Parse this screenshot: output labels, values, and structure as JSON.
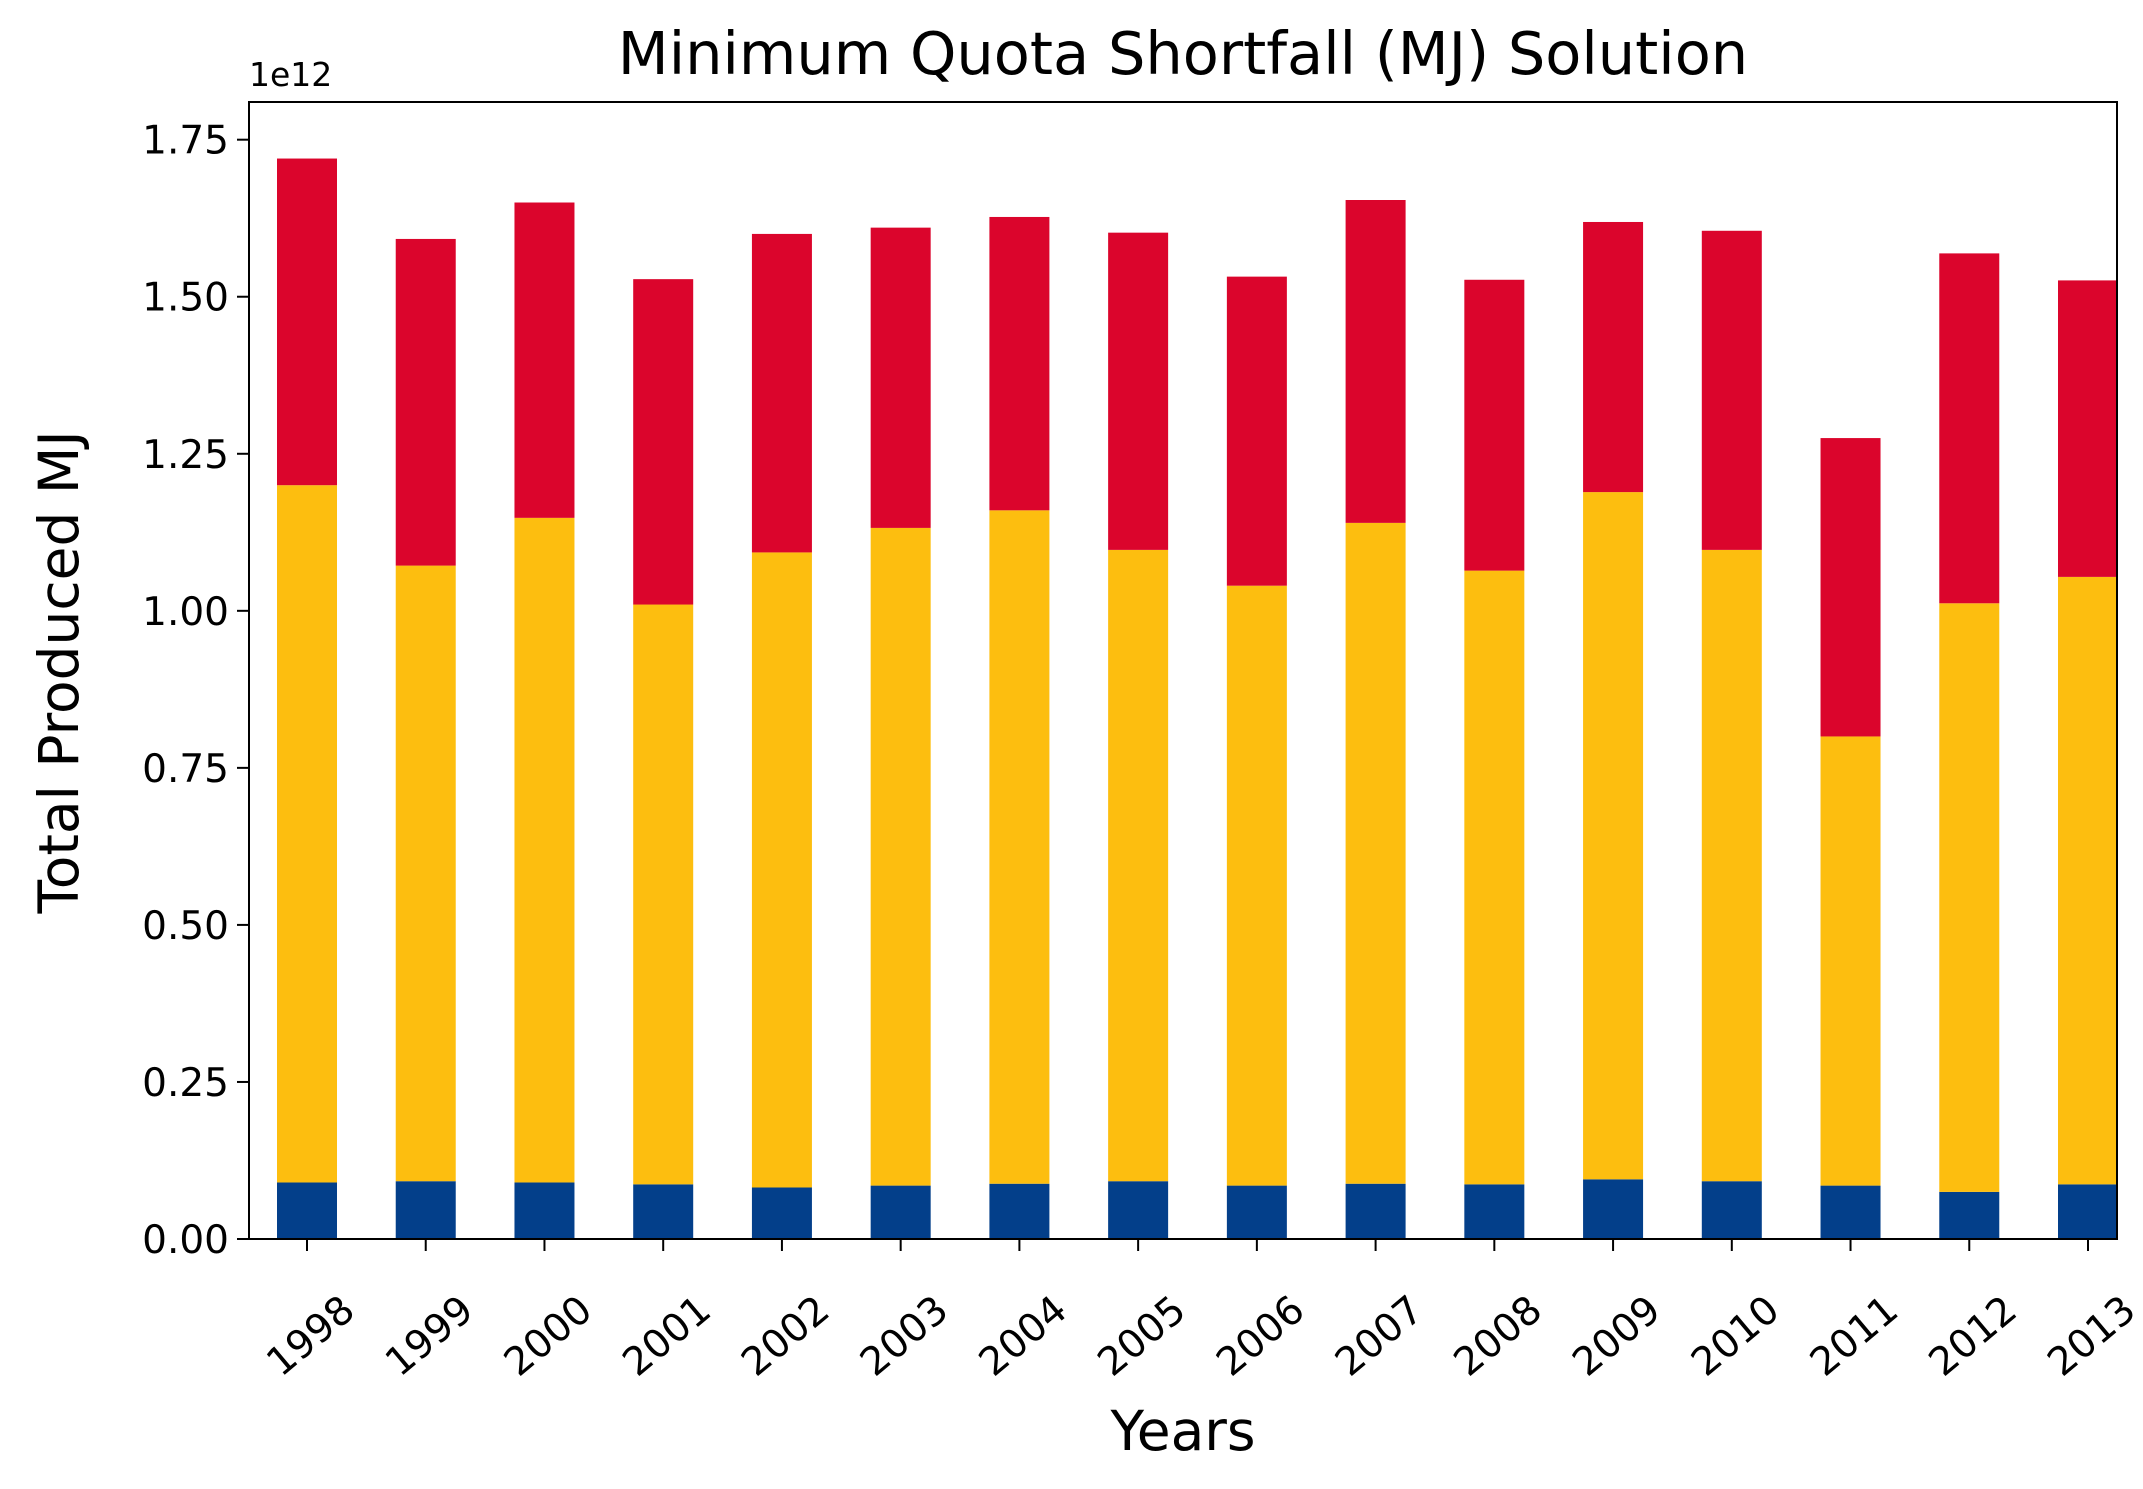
{
  "chart_data": {
    "type": "bar",
    "stacked": true,
    "title": "Minimum Quota Shortfall (MJ) Solution",
    "xlabel": "Years",
    "ylabel": "Total Produced MJ",
    "y_offset_label": "1e12",
    "ylim": [
      0,
      1.81
    ],
    "yticks": [
      0.0,
      0.25,
      0.5,
      0.75,
      1.0,
      1.25,
      1.5,
      1.75
    ],
    "ytick_labels": [
      "0.00",
      "0.25",
      "0.50",
      "0.75",
      "1.00",
      "1.25",
      "1.50",
      "1.75"
    ],
    "grid": false,
    "legend": false,
    "categories": [
      "1998",
      "1999",
      "2000",
      "2001",
      "2002",
      "2003",
      "2004",
      "2005",
      "2006",
      "2007",
      "2008",
      "2009",
      "2010",
      "2011",
      "2012",
      "2013"
    ],
    "series": [
      {
        "color": "#033f8a",
        "values": [
          0.09,
          0.092,
          0.09,
          0.087,
          0.082,
          0.085,
          0.088,
          0.092,
          0.085,
          0.088,
          0.087,
          0.095,
          0.092,
          0.085,
          0.075,
          0.087
        ]
      },
      {
        "color": "#fdbe0f",
        "values": [
          1.11,
          0.98,
          1.058,
          0.923,
          1.011,
          1.047,
          1.072,
          1.005,
          0.955,
          1.052,
          0.977,
          1.094,
          1.005,
          0.715,
          0.937,
          0.967
        ]
      },
      {
        "color": "#db052c",
        "values": [
          0.52,
          0.52,
          0.502,
          0.518,
          0.507,
          0.478,
          0.467,
          0.505,
          0.492,
          0.514,
          0.463,
          0.43,
          0.508,
          0.475,
          0.557,
          0.472
        ]
      }
    ]
  }
}
